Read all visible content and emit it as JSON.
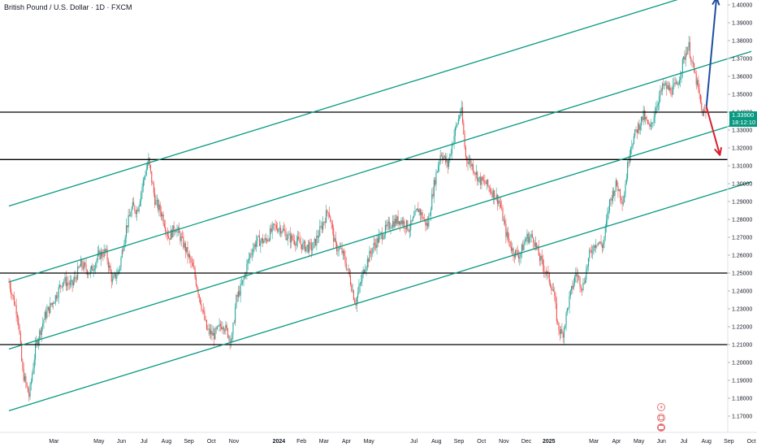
{
  "title": "British Pound / U.S. Dollar · 1D · FXCM",
  "price_badge": {
    "price": "1.33900",
    "countdown": "18:12:10",
    "color": "#089981"
  },
  "colors": {
    "channel": "#089981",
    "level": "#000000",
    "bull_arrow": "#1e4fa0",
    "bear_arrow": "#d62030",
    "candle_up": "#26a69a",
    "candle_down": "#ef5350"
  },
  "icons": [
    "lightning-icon",
    "calendar-icon",
    "flag-icon"
  ],
  "chart_data": {
    "type": "candlestick",
    "title": "British Pound / U.S. Dollar · 1D · FXCM",
    "ylim": [
      1.163,
      1.405
    ],
    "y_ticks": [
      "1.40000",
      "1.39000",
      "1.38000",
      "1.37000",
      "1.36000",
      "1.35000",
      "1.34000",
      "1.33000",
      "1.32000",
      "1.31000",
      "1.30000",
      "1.29000",
      "1.28000",
      "1.27000",
      "1.26000",
      "1.25000",
      "1.24000",
      "1.23000",
      "1.22000",
      "1.21000",
      "1.20000",
      "1.19000",
      "1.18000",
      "1.17000"
    ],
    "x_ticks": [
      {
        "label": "Mar",
        "t": 2
      },
      {
        "label": "May",
        "t": 4
      },
      {
        "label": "Jun",
        "t": 5
      },
      {
        "label": "Jul",
        "t": 6
      },
      {
        "label": "Aug",
        "t": 7
      },
      {
        "label": "Sep",
        "t": 8
      },
      {
        "label": "Oct",
        "t": 9
      },
      {
        "label": "Nov",
        "t": 10
      },
      {
        "label": "2024",
        "t": 12,
        "year": true
      },
      {
        "label": "Feb",
        "t": 13
      },
      {
        "label": "Mar",
        "t": 14
      },
      {
        "label": "Apr",
        "t": 15
      },
      {
        "label": "May",
        "t": 16
      },
      {
        "label": "Jul",
        "t": 18
      },
      {
        "label": "Aug",
        "t": 19
      },
      {
        "label": "Sep",
        "t": 20
      },
      {
        "label": "Oct",
        "t": 21
      },
      {
        "label": "Nov",
        "t": 22
      },
      {
        "label": "Dec",
        "t": 23
      },
      {
        "label": "2025",
        "t": 24,
        "year": true
      },
      {
        "label": "Mar",
        "t": 26
      },
      {
        "label": "Apr",
        "t": 27
      },
      {
        "label": "May",
        "t": 28
      },
      {
        "label": "Jun",
        "t": 29
      },
      {
        "label": "Jul",
        "t": 30
      },
      {
        "label": "Aug",
        "t": 31
      },
      {
        "label": "Sep",
        "t": 32
      },
      {
        "label": "Oct",
        "t": 33
      }
    ],
    "price_path": [
      [
        0.0,
        1.245
      ],
      [
        0.4,
        1.226
      ],
      [
        0.6,
        1.195
      ],
      [
        0.9,
        1.181
      ],
      [
        1.2,
        1.21
      ],
      [
        1.6,
        1.226
      ],
      [
        2.0,
        1.235
      ],
      [
        2.4,
        1.246
      ],
      [
        2.8,
        1.243
      ],
      [
        3.2,
        1.255
      ],
      [
        3.6,
        1.25
      ],
      [
        4.0,
        1.26
      ],
      [
        4.3,
        1.262
      ],
      [
        4.6,
        1.245
      ],
      [
        4.9,
        1.252
      ],
      [
        5.2,
        1.275
      ],
      [
        5.5,
        1.287
      ],
      [
        5.7,
        1.285
      ],
      [
        6.0,
        1.303
      ],
      [
        6.2,
        1.313
      ],
      [
        6.5,
        1.29
      ],
      [
        6.8,
        1.283
      ],
      [
        7.1,
        1.27
      ],
      [
        7.4,
        1.276
      ],
      [
        7.8,
        1.265
      ],
      [
        8.2,
        1.252
      ],
      [
        8.5,
        1.235
      ],
      [
        8.8,
        1.218
      ],
      [
        9.1,
        1.215
      ],
      [
        9.5,
        1.222
      ],
      [
        9.9,
        1.212
      ],
      [
        10.1,
        1.235
      ],
      [
        10.4,
        1.245
      ],
      [
        10.7,
        1.26
      ],
      [
        11.0,
        1.268
      ],
      [
        11.4,
        1.268
      ],
      [
        11.8,
        1.276
      ],
      [
        12.1,
        1.275
      ],
      [
        12.4,
        1.27
      ],
      [
        12.8,
        1.268
      ],
      [
        13.1,
        1.265
      ],
      [
        13.5,
        1.264
      ],
      [
        13.9,
        1.276
      ],
      [
        14.2,
        1.286
      ],
      [
        14.5,
        1.265
      ],
      [
        14.8,
        1.262
      ],
      [
        15.1,
        1.25
      ],
      [
        15.4,
        1.233
      ],
      [
        15.8,
        1.253
      ],
      [
        16.2,
        1.265
      ],
      [
        16.6,
        1.272
      ],
      [
        17.0,
        1.278
      ],
      [
        17.4,
        1.28
      ],
      [
        17.8,
        1.275
      ],
      [
        18.2,
        1.286
      ],
      [
        18.6,
        1.276
      ],
      [
        18.9,
        1.3
      ],
      [
        19.2,
        1.318
      ],
      [
        19.5,
        1.31
      ],
      [
        19.8,
        1.328
      ],
      [
        20.1,
        1.342
      ],
      [
        20.3,
        1.315
      ],
      [
        20.6,
        1.31
      ],
      [
        20.9,
        1.302
      ],
      [
        21.2,
        1.3
      ],
      [
        21.5,
        1.295
      ],
      [
        21.8,
        1.29
      ],
      [
        22.1,
        1.272
      ],
      [
        22.4,
        1.262
      ],
      [
        22.7,
        1.26
      ],
      [
        23.0,
        1.27
      ],
      [
        23.3,
        1.27
      ],
      [
        23.6,
        1.258
      ],
      [
        23.9,
        1.25
      ],
      [
        24.2,
        1.24
      ],
      [
        24.4,
        1.22
      ],
      [
        24.6,
        1.215
      ],
      [
        24.9,
        1.235
      ],
      [
        25.2,
        1.25
      ],
      [
        25.5,
        1.242
      ],
      [
        25.8,
        1.26
      ],
      [
        26.1,
        1.268
      ],
      [
        26.4,
        1.265
      ],
      [
        26.7,
        1.29
      ],
      [
        27.0,
        1.3
      ],
      [
        27.3,
        1.29
      ],
      [
        27.6,
        1.32
      ],
      [
        27.9,
        1.33
      ],
      [
        28.2,
        1.338
      ],
      [
        28.5,
        1.33
      ],
      [
        28.8,
        1.345
      ],
      [
        29.1,
        1.355
      ],
      [
        29.4,
        1.352
      ],
      [
        29.7,
        1.355
      ],
      [
        30.0,
        1.37
      ],
      [
        30.2,
        1.378
      ],
      [
        30.4,
        1.365
      ],
      [
        30.6,
        1.355
      ],
      [
        30.8,
        1.34
      ],
      [
        31.0,
        1.339
      ]
    ],
    "horizontal_levels": [
      1.34,
      1.3135,
      1.25,
      1.21
    ],
    "channel_lines": [
      {
        "t1": 0,
        "p1": 1.2875,
        "t2": 30.5,
        "p2": 1.406
      },
      {
        "t1": 0,
        "p1": 1.245,
        "t2": 33,
        "p2": 1.374
      },
      {
        "t1": 0,
        "p1": 1.2075,
        "t2": 33,
        "p2": 1.336
      },
      {
        "t1": 0,
        "p1": 1.173,
        "t2": 33,
        "p2": 1.301
      }
    ],
    "arrows": [
      {
        "name": "bullish-projection",
        "from": [
          31.0,
          1.343
        ],
        "to": [
          31.45,
          1.404
        ]
      },
      {
        "name": "bearish-projection",
        "from": [
          31.0,
          1.343
        ],
        "to": [
          31.6,
          1.316
        ]
      }
    ]
  }
}
